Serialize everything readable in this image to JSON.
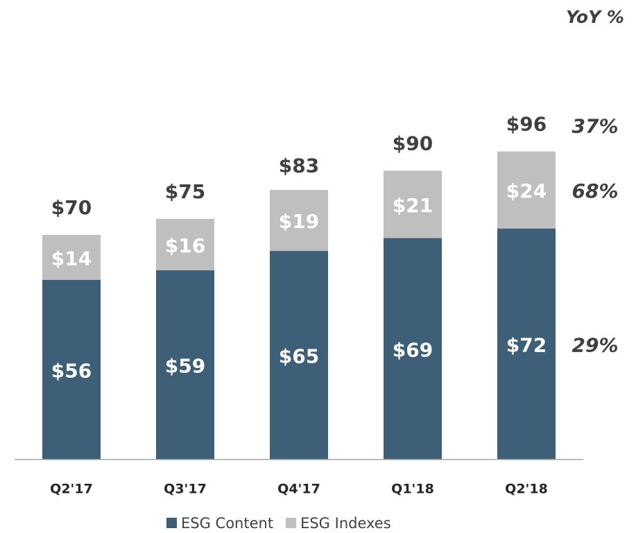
{
  "chart_data": {
    "type": "stacked_bar",
    "categories": [
      "Q2'17",
      "Q3'17",
      "Q4'17",
      "Q1'18",
      "Q2'18"
    ],
    "series": [
      {
        "name": "ESG Content",
        "color": "#3d5f78",
        "values": [
          56,
          59,
          65,
          69,
          72
        ],
        "value_labels": [
          "$56",
          "$59",
          "$65",
          "$69",
          "$72"
        ]
      },
      {
        "name": "ESG Indexes",
        "color": "#bfbfbf",
        "values": [
          14,
          16,
          19,
          21,
          24
        ],
        "value_labels": [
          "$14",
          "$16",
          "$19",
          "$21",
          "$24"
        ]
      }
    ],
    "totals": [
      70,
      75,
      83,
      90,
      96
    ],
    "total_labels": [
      "$70",
      "$75",
      "$83",
      "$90",
      "$96"
    ],
    "yoy": {
      "title": "YoY %",
      "values": [
        37,
        68,
        29
      ],
      "value_labels": [
        "37%",
        "68%",
        "29%"
      ]
    },
    "ylim": [
      0,
      100
    ],
    "legend": "bottom"
  }
}
